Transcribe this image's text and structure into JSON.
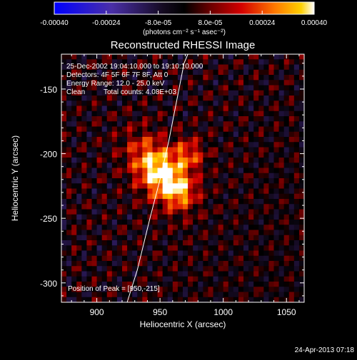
{
  "colorbar": {
    "ticks": [
      "-0.00040",
      "-0.00024",
      "-8.0e-05",
      "8.0e-05",
      "0.00024",
      "0.00040"
    ],
    "tick_values": [
      -0.0004,
      -0.00024,
      -8e-05,
      8e-05,
      0.00024,
      0.0004
    ],
    "range": [
      -0.0004,
      0.0004
    ],
    "unit_label": "(photons cm⁻² s⁻¹ asec⁻²)",
    "colors": [
      "#0000ff",
      "#5a2f9a",
      "#000000",
      "#cc0000",
      "#ff8800",
      "#ffffff"
    ]
  },
  "chart_data": {
    "type": "heatmap",
    "title": "Reconstructed RHESSI Image",
    "xlabel": "Heliocentric X (arcsec)",
    "ylabel": "Heliocentric Y (arcsec)",
    "xlim": [
      872,
      1064
    ],
    "ylim": [
      -315,
      -123
    ],
    "x_ticks": [
      900,
      950,
      1000,
      1050
    ],
    "y_ticks": [
      -150,
      -200,
      -250,
      -300
    ],
    "peak": {
      "x": 950,
      "y": -215
    },
    "limb_curve": {
      "x": [
        924,
        932,
        942,
        950,
        957,
        963,
        969,
        972
      ],
      "y": [
        -315,
        -290,
        -250,
        -220,
        -190,
        -160,
        -130,
        -123
      ]
    }
  },
  "annotations": {
    "time_range": "25-Dec-2002 19:04:10.000 to 19:10:10.000",
    "detectors": "Detectors: 4F 5F 6F 7F 8F, Att 0",
    "energy": "Energy Range: 12.0 - 25.0 keV",
    "clean": "Clean",
    "total_counts": "Total counts: 4.08E+03",
    "peak_position": "Position of Peak = [950,-215]"
  },
  "timestamp": "24-Apr-2013 07:18"
}
